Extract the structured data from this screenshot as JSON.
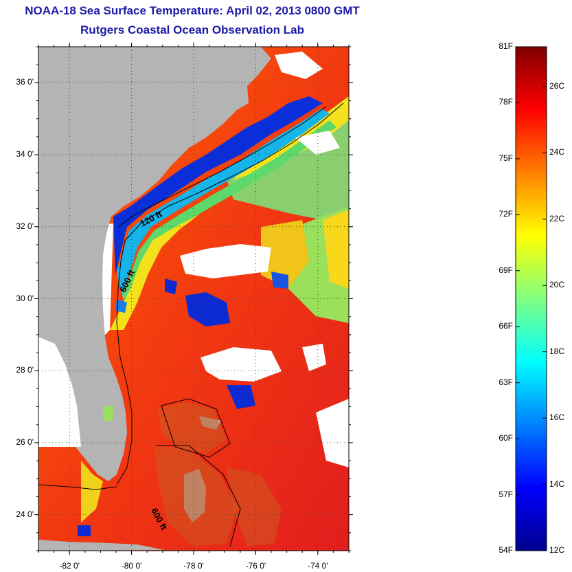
{
  "title_line1": "NOAA-18 Sea Surface Temperature:  April 02, 2013 0800 GMT",
  "title_line2": "Rutgers Coastal Ocean Observation Lab",
  "map": {
    "lon_range": [
      -83,
      -73
    ],
    "lat_range": [
      23,
      37
    ],
    "lat_ticks": [
      {
        "value": 36,
        "label": "36 0'"
      },
      {
        "value": 34,
        "label": "34 0'"
      },
      {
        "value": 32,
        "label": "32 0'"
      },
      {
        "value": 30,
        "label": "30 0'"
      },
      {
        "value": 28,
        "label": "28 0'"
      },
      {
        "value": 26,
        "label": "26 0'"
      },
      {
        "value": 24,
        "label": "24 0'"
      }
    ],
    "lon_ticks": [
      {
        "value": -82,
        "label": "-82 0'"
      },
      {
        "value": -80,
        "label": "-80 0'"
      },
      {
        "value": -78,
        "label": "-78 0'"
      },
      {
        "value": -76,
        "label": "-76 0'"
      },
      {
        "value": -74,
        "label": "-74 0'"
      }
    ],
    "contour_labels": [
      "120 ft",
      "600 ft",
      "600 ft"
    ],
    "colors": {
      "land": "#b4b4b4",
      "cloud": "#ffffff",
      "gridline": "#444444"
    }
  },
  "colorbar": {
    "fahrenheit_labels": [
      "81F",
      "78F",
      "75F",
      "72F",
      "69F",
      "66F",
      "63F",
      "60F",
      "57F",
      "54F"
    ],
    "celsius_labels": [
      "26C",
      "24C",
      "22C",
      "20C",
      "18C",
      "16C",
      "14C",
      "12C"
    ],
    "colormap": "jet",
    "range_celsius": [
      12,
      27.2
    ]
  }
}
